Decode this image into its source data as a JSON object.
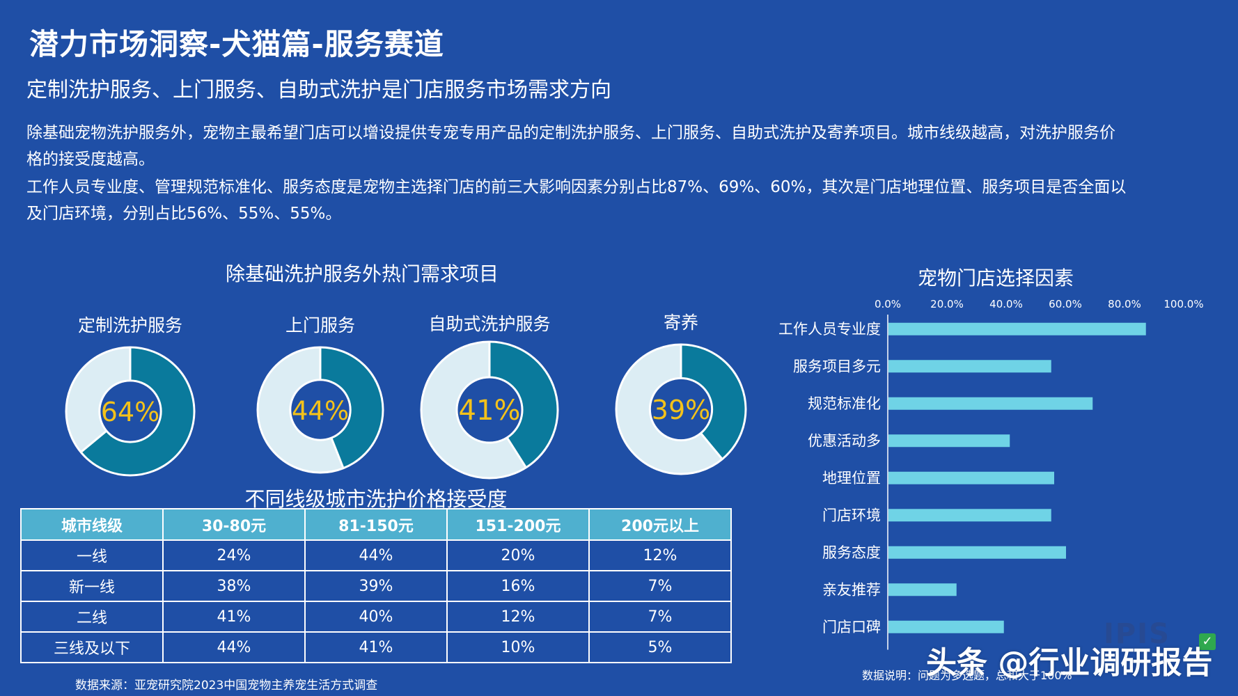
{
  "title": "潜力市场洞察-犬猫篇-服务赛道",
  "subtitle": "定制洗护服务、上门服务、自助式洗护是门店服务市场需求方向",
  "paragraphs": [
    "除基础宠物洗护服务外，宠物主最希望门店可以增设提供专宠专用产品的定制洗护服务、上门服务、自助式洗护及寄养项目。城市线级越高，对洗护服务价格的接受度越高。",
    "工作人员专业度、管理规范标准化、服务态度是宠物主选择门店的前三大影响因素分别占比87%、69%、60%，其次是门店地理位置、服务项目是否全面以及门店环境，分别占比56%、55%、55%。"
  ],
  "colors": {
    "background": "#1f4fa6",
    "donut_fill": "#0a7a9c",
    "donut_rest": "#dcedf4",
    "donut_center": "#1f4fa6",
    "donut_value": "#f4c21a",
    "bar": "#6fd3e6",
    "table_header": "#4fb0cf"
  },
  "watermark": "头条 @行业调研报告",
  "logo_text": "IPIS",
  "chart_data": [
    {
      "type": "pie",
      "title": "除基础洗护服务外热门需求项目",
      "items": [
        {
          "label": "定制洗护服务",
          "value": 64,
          "display": "64%"
        },
        {
          "label": "上门服务",
          "value": 44,
          "display": "44%"
        },
        {
          "label": "自助式洗护服务",
          "value": 41,
          "display": "41%"
        },
        {
          "label": "寄养",
          "value": 39,
          "display": "39%"
        }
      ]
    },
    {
      "type": "table",
      "title": "不同线级城市洗护价格接受度",
      "columns": [
        "城市线级",
        "30-80元",
        "81-150元",
        "151-200元",
        "200元以上"
      ],
      "rows": [
        [
          "一线",
          "24%",
          "44%",
          "20%",
          "12%"
        ],
        [
          "新一线",
          "38%",
          "39%",
          "16%",
          "7%"
        ],
        [
          "二线",
          "41%",
          "40%",
          "12%",
          "7%"
        ],
        [
          "三线及以下",
          "44%",
          "41%",
          "10%",
          "5%"
        ]
      ],
      "source": "数据来源：亚宠研究院2023中国宠物主养宠生活方式调查"
    },
    {
      "type": "bar",
      "orientation": "horizontal",
      "title": "宠物门店选择因素",
      "categories": [
        "工作人员专业度",
        "服务项目多元",
        "规范标准化",
        "优惠活动多",
        "地理位置",
        "门店环境",
        "服务态度",
        "亲友推荐",
        "门店口碑"
      ],
      "values": [
        87,
        55,
        69,
        41,
        56,
        55,
        60,
        23,
        39
      ],
      "xlim": [
        0,
        100
      ],
      "xticks": [
        "0.0%",
        "20.0%",
        "40.0%",
        "60.0%",
        "80.0%",
        "100.0%"
      ],
      "axis_position": "top",
      "note": "数据说明：问题为多选题，总和大于100%"
    }
  ]
}
